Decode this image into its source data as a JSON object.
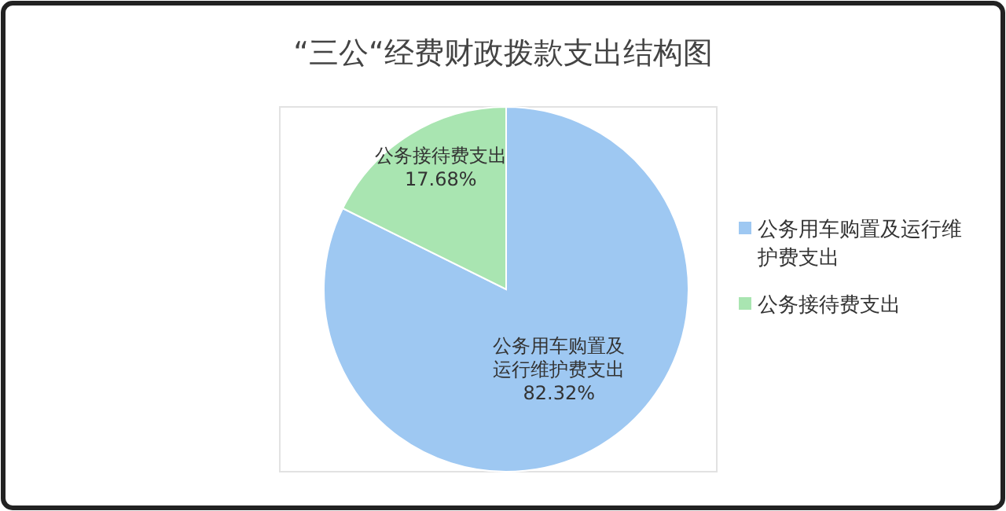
{
  "chart_data": {
    "type": "pie",
    "title": "“三公“经费财政拨款支出结构图",
    "categories": [
      "公务用车购置及运行维护费支出",
      "公务接待费支出"
    ],
    "values": [
      82.32,
      17.68
    ],
    "colors": [
      "#9ec8f2",
      "#a9e5b1"
    ],
    "value_labels": [
      "82.32%",
      "17.68%"
    ],
    "legend": "right"
  }
}
